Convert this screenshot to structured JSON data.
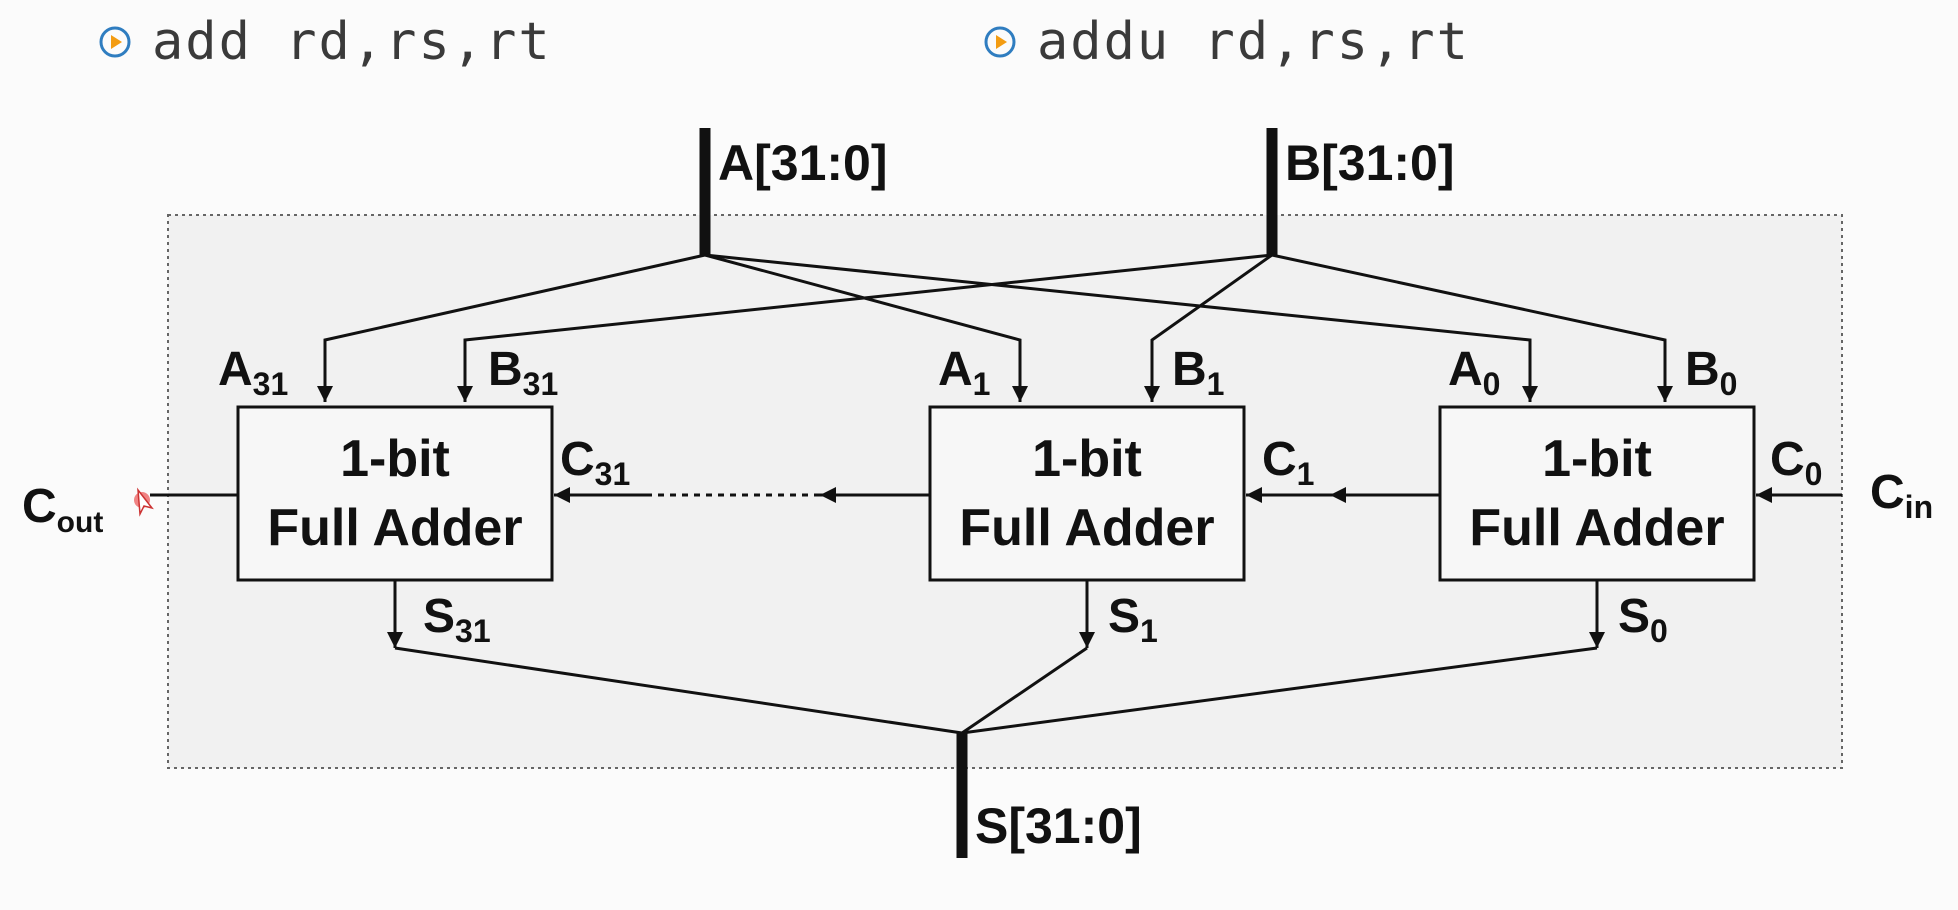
{
  "instructions": [
    {
      "icon": "play-circle-icon",
      "text": "add rd,rs,rt"
    },
    {
      "icon": "play-circle-icon",
      "text": "addu rd,rs,rt"
    }
  ],
  "buses": {
    "a": "A[31:0]",
    "b": "B[31:0]",
    "s": "S[31:0]"
  },
  "adders": [
    {
      "line1": "1-bit",
      "line2": "Full Adder",
      "a_base": "A",
      "a_sub": "31",
      "b_base": "B",
      "b_sub": "31",
      "s_base": "S",
      "s_sub": "31",
      "c_base": "C",
      "c_sub": "31"
    },
    {
      "line1": "1-bit",
      "line2": "Full Adder",
      "a_base": "A",
      "a_sub": "1",
      "b_base": "B",
      "b_sub": "1",
      "s_base": "S",
      "s_sub": "1",
      "c_base": "C",
      "c_sub": "1"
    },
    {
      "line1": "1-bit",
      "line2": "Full Adder",
      "a_base": "A",
      "a_sub": "0",
      "b_base": "B",
      "b_sub": "0",
      "s_base": "S",
      "s_sub": "0",
      "c_base": "C",
      "c_sub": "0"
    }
  ],
  "carry": {
    "out_base": "C",
    "out_sub": "out",
    "in_base": "C",
    "in_sub": "in"
  },
  "colors": {
    "line": "#111111",
    "box_fill": "#f7f7f7",
    "panel_fill": "#f1f1f1",
    "icon_accent": "#f39c12",
    "icon_ring": "#2f7dc0"
  }
}
